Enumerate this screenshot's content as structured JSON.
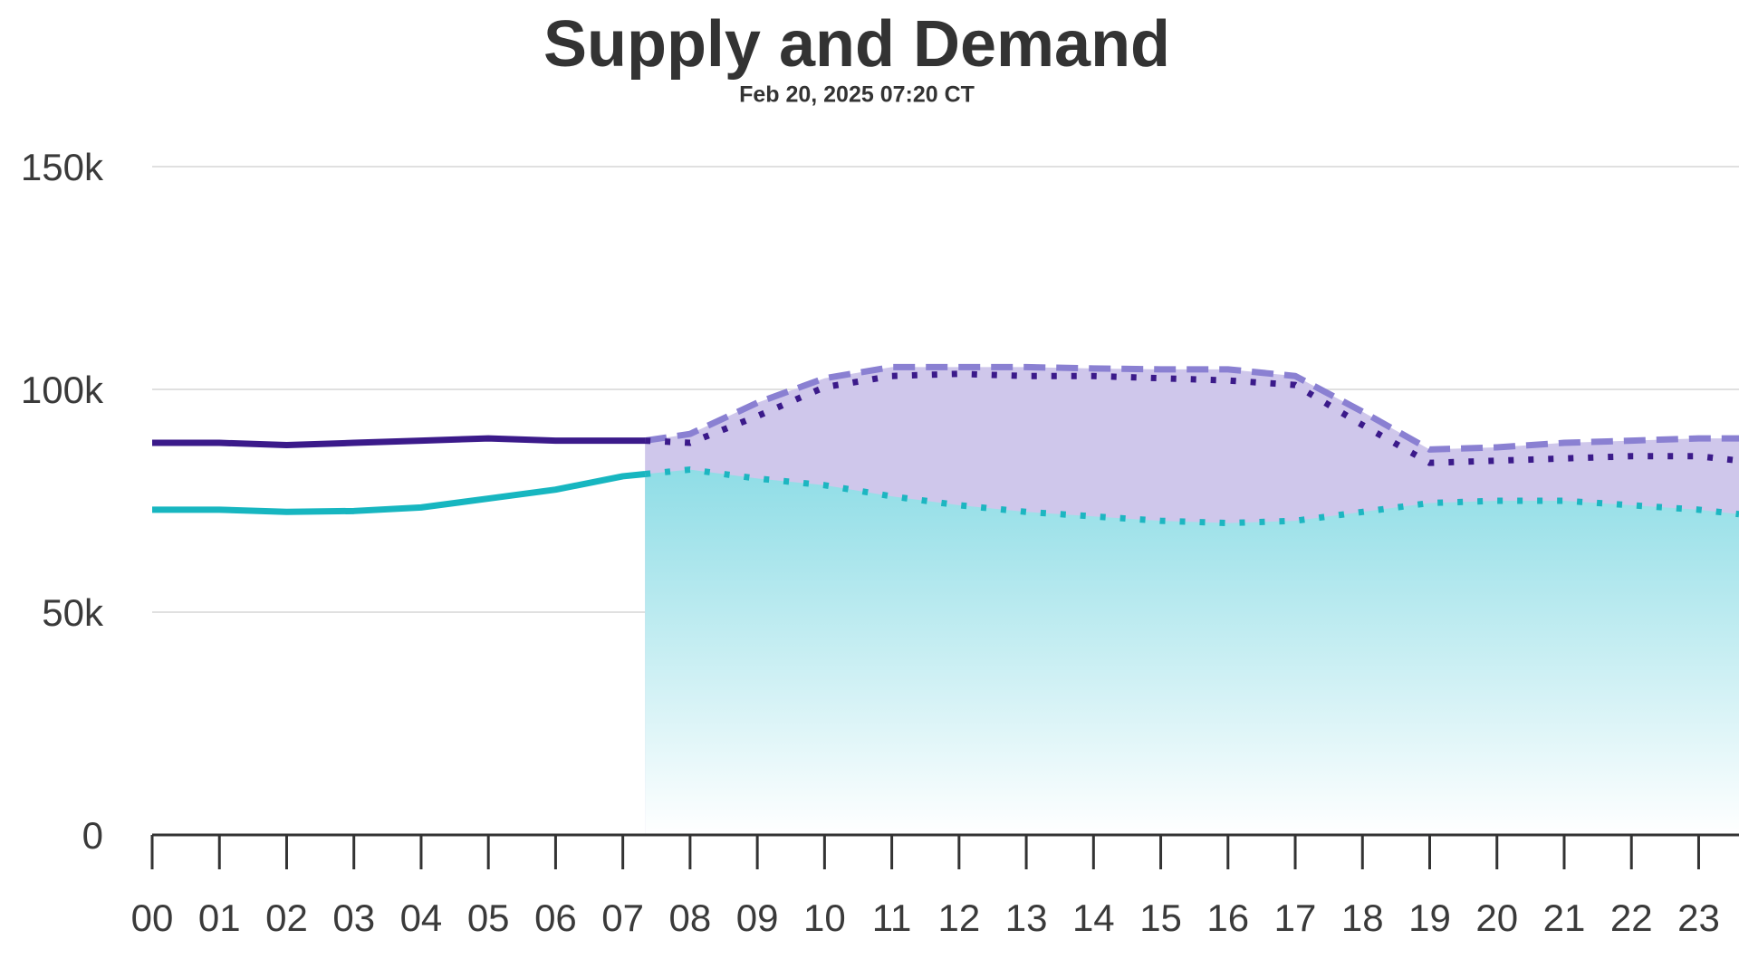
{
  "chart_data": {
    "type": "line",
    "title": "Supply and Demand",
    "subtitle": "Feb 20, 2025 07:20 CT",
    "xlim": [
      0,
      23.6
    ],
    "xticks": [
      {
        "value": 0,
        "label": "00"
      },
      {
        "value": 1,
        "label": "01"
      },
      {
        "value": 2,
        "label": "02"
      },
      {
        "value": 3,
        "label": "03"
      },
      {
        "value": 4,
        "label": "04"
      },
      {
        "value": 5,
        "label": "05"
      },
      {
        "value": 6,
        "label": "06"
      },
      {
        "value": 7,
        "label": "07"
      },
      {
        "value": 8,
        "label": "08"
      },
      {
        "value": 9,
        "label": "09"
      },
      {
        "value": 10,
        "label": "10"
      },
      {
        "value": 11,
        "label": "11"
      },
      {
        "value": 12,
        "label": "12"
      },
      {
        "value": 13,
        "label": "13"
      },
      {
        "value": 14,
        "label": "14"
      },
      {
        "value": 15,
        "label": "15"
      },
      {
        "value": 16,
        "label": "16"
      },
      {
        "value": 17,
        "label": "17"
      },
      {
        "value": 18,
        "label": "18"
      },
      {
        "value": 19,
        "label": "19"
      },
      {
        "value": 20,
        "label": "20"
      },
      {
        "value": 21,
        "label": "21"
      },
      {
        "value": 22,
        "label": "22"
      },
      {
        "value": 23,
        "label": "23"
      }
    ],
    "ylim": [
      0,
      150000
    ],
    "yticks": [
      0,
      {
        "value": 50000,
        "label": "50k"
      },
      {
        "value": 100000,
        "label": "100k"
      },
      {
        "value": 150000,
        "label": "150k"
      }
    ],
    "grid": true,
    "series": [
      {
        "color": "#8a80d2",
        "dash": "dashed",
        "fill": "#cfc7eb",
        "x": [
          7.33,
          8,
          9,
          10,
          11,
          12,
          13,
          14,
          15,
          16,
          17,
          18,
          19,
          20,
          21,
          22,
          23,
          23.6
        ],
        "values": [
          88500,
          90000,
          97000,
          102500,
          105000,
          105000,
          105000,
          104700,
          104500,
          104500,
          103000,
          95000,
          86500,
          87000,
          88000,
          88500,
          89000,
          89000
        ]
      },
      {
        "color": "#1db6c1",
        "dash": "dotted",
        "fill_gradient": [
          "#8fdde6",
          "#ffffff"
        ],
        "x": [
          7.33,
          8,
          9,
          10,
          11,
          12,
          13,
          14,
          15,
          16,
          17,
          18,
          19,
          20,
          21,
          22,
          23,
          23.6
        ],
        "values": [
          81000,
          82000,
          80000,
          78500,
          76000,
          74000,
          72500,
          71500,
          70500,
          70000,
          70500,
          72500,
          74500,
          75000,
          75000,
          74000,
          73000,
          72000
        ]
      },
      {
        "color": "#3b1a8a",
        "dash": "dotted",
        "x": [
          7.33,
          8,
          9,
          10,
          11,
          12,
          13,
          14,
          15,
          16,
          17,
          18,
          19,
          20,
          21,
          22,
          23,
          23.6
        ],
        "values": [
          88500,
          88000,
          94000,
          100500,
          103000,
          103500,
          103000,
          103000,
          102500,
          102000,
          101000,
          92000,
          83500,
          84000,
          84500,
          85000,
          85000,
          84000
        ]
      },
      {
        "color": "#3b1a8a",
        "dash": "solid",
        "x": [
          0,
          1,
          2,
          3,
          4,
          5,
          6,
          7,
          7.33
        ],
        "values": [
          88000,
          88000,
          87500,
          88000,
          88500,
          89000,
          88500,
          88500,
          88500
        ]
      },
      {
        "color": "#17b6c0",
        "dash": "solid",
        "x": [
          0,
          1,
          2,
          3,
          4,
          5,
          6,
          7,
          7.33
        ],
        "values": [
          73000,
          73000,
          72500,
          72700,
          73500,
          75500,
          77500,
          80500,
          81000
        ]
      }
    ]
  }
}
